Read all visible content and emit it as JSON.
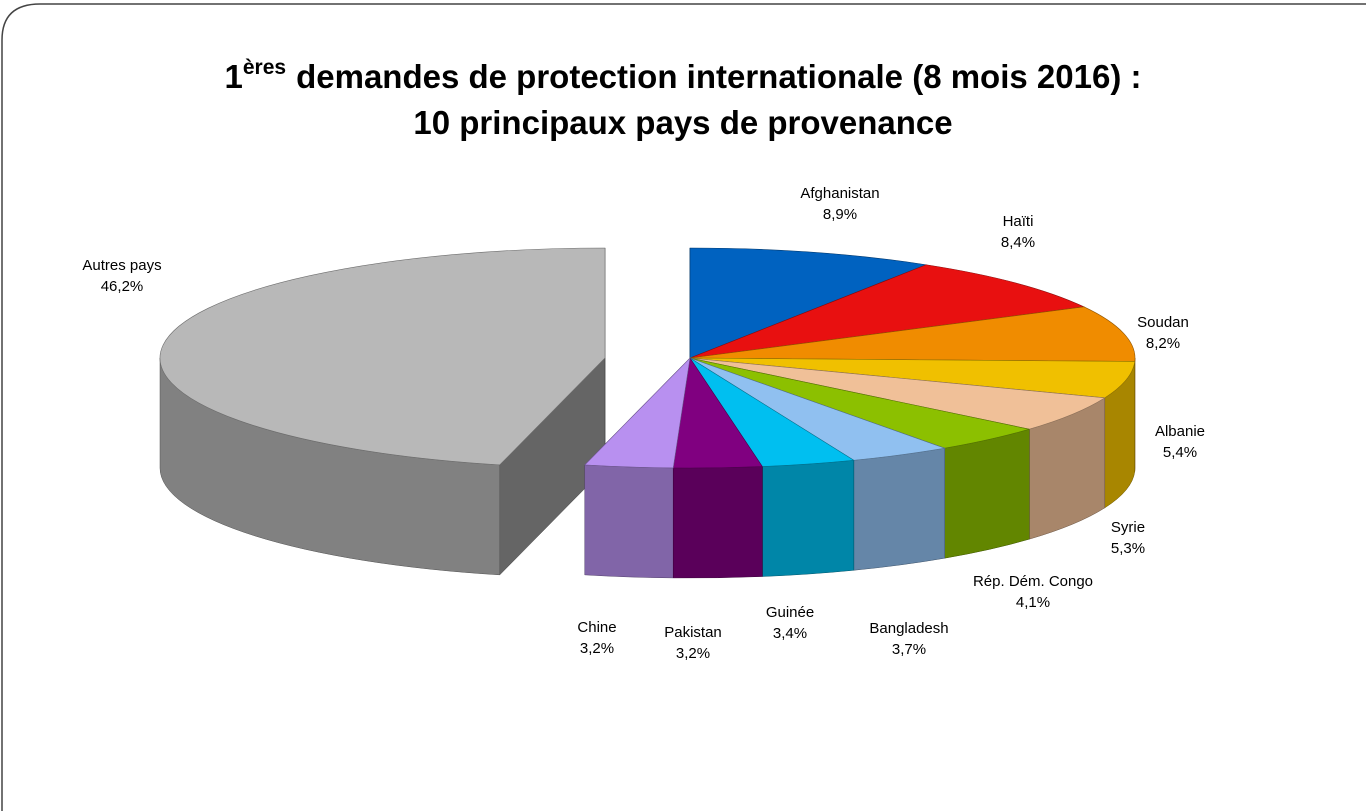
{
  "chart_data": {
    "type": "pie3d",
    "title": [
      "1",
      "ères",
      "demandes de protection internationale (8 mois 2016) :"
    ],
    "subtitle": "10 principaux pays de provenance",
    "categories": [
      "Afghanistan",
      "Haïti",
      "Soudan",
      "Albanie",
      "Syrie",
      "Rép. Dém. Congo",
      "Bangladesh",
      "Guinée",
      "Pakistan",
      "Chine",
      "Autres pays"
    ],
    "values": [
      8.9,
      8.4,
      8.2,
      5.4,
      5.3,
      4.1,
      3.7,
      3.4,
      3.2,
      3.2,
      46.2
    ],
    "value_labels": [
      "8,9%",
      "8,4%",
      "8,2%",
      "5,4%",
      "5,3%",
      "4,1%",
      "3,7%",
      "3,4%",
      "3,2%",
      "3,2%",
      "46,2%"
    ],
    "colors": [
      "#0062c0",
      "#e81010",
      "#f08c00",
      "#f0c000",
      "#f0c098",
      "#8cc000",
      "#90c0f0",
      "#00bff0",
      "#800080",
      "#b890f0",
      "#b8b8b8"
    ],
    "exploded": [
      10
    ]
  }
}
